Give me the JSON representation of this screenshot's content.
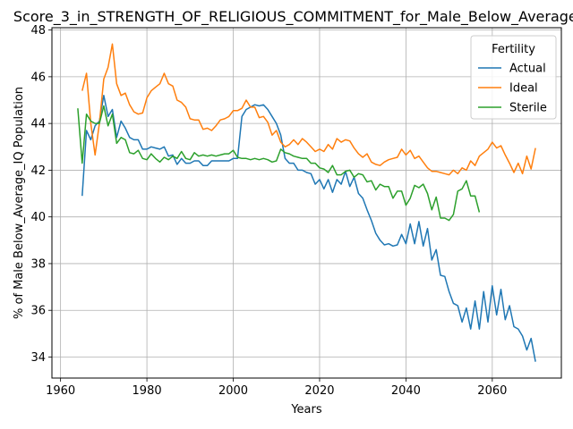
{
  "chart_data": {
    "type": "line",
    "title": "Score_3_in_STRENGTH_OF_RELIGIOUS_COMMITMENT_for_Male_Below_Average_IQ",
    "xlabel": "Years",
    "ylabel": "% of Male Below_Average_IQ Population",
    "xlim": [
      1958,
      2076
    ],
    "ylim": [
      33.1,
      48.1
    ],
    "xticks": [
      1960,
      1980,
      2000,
      2020,
      2040,
      2060
    ],
    "yticks": [
      34,
      36,
      38,
      40,
      42,
      44,
      46,
      48
    ],
    "grid": true,
    "legend": {
      "title": "Fertility",
      "position": "top-right"
    },
    "series": [
      {
        "name": "Actual",
        "color": "#1f77b4",
        "x": [
          1965,
          1966,
          1967,
          1968,
          1969,
          1970,
          1971,
          1972,
          1973,
          1974,
          1975,
          1976,
          1977,
          1978,
          1979,
          1980,
          1981,
          1982,
          1983,
          1984,
          1985,
          1986,
          1987,
          1988,
          1989,
          1990,
          1991,
          1992,
          1993,
          1994,
          1995,
          1996,
          1997,
          1998,
          1999,
          2000,
          2001,
          2002,
          2003,
          2004,
          2005,
          2006,
          2007,
          2008,
          2009,
          2010,
          2011,
          2012,
          2013,
          2014,
          2015,
          2016,
          2017,
          2018,
          2019,
          2020,
          2021,
          2022,
          2023,
          2024,
          2025,
          2026,
          2027,
          2028,
          2029,
          2030,
          2031,
          2032,
          2033,
          2034,
          2035,
          2036,
          2037,
          2038,
          2039,
          2040,
          2041,
          2042,
          2043,
          2044,
          2045,
          2046,
          2047,
          2048,
          2049,
          2050,
          2051,
          2052,
          2053,
          2054,
          2055,
          2056,
          2057,
          2058,
          2059,
          2060,
          2061,
          2062,
          2063,
          2064,
          2065,
          2066,
          2067,
          2068,
          2069,
          2070
        ],
        "y": [
          40.9,
          43.7,
          43.3,
          43.9,
          44.1,
          45.2,
          44.3,
          44.6,
          43.4,
          44.1,
          43.8,
          43.4,
          43.3,
          43.3,
          42.9,
          42.9,
          43.0,
          42.95,
          42.9,
          43.0,
          42.6,
          42.65,
          42.25,
          42.5,
          42.3,
          42.3,
          42.4,
          42.4,
          42.2,
          42.2,
          42.4,
          42.4,
          42.4,
          42.4,
          42.4,
          42.5,
          42.5,
          44.3,
          44.6,
          44.7,
          44.8,
          44.75,
          44.8,
          44.6,
          44.3,
          44.0,
          43.5,
          42.5,
          42.3,
          42.3,
          42.0,
          42.0,
          41.9,
          41.85,
          41.4,
          41.6,
          41.2,
          41.6,
          41.05,
          41.6,
          41.4,
          41.95,
          41.3,
          41.7,
          41.0,
          40.8,
          40.3,
          39.85,
          39.3,
          39.0,
          38.8,
          38.85,
          38.75,
          38.8,
          39.25,
          38.85,
          39.7,
          38.85,
          39.8,
          38.75,
          39.5,
          38.15,
          38.6,
          37.5,
          37.45,
          36.8,
          36.3,
          36.2,
          35.5,
          36.1,
          35.2,
          36.4,
          35.2,
          36.8,
          35.5,
          37.05,
          35.8,
          36.9,
          35.6,
          36.2,
          35.3,
          35.2,
          34.9,
          34.3,
          34.8,
          33.8
        ]
      },
      {
        "name": "Ideal",
        "color": "#ff7f0e",
        "x": [
          1965,
          1966,
          1967,
          1968,
          1969,
          1970,
          1971,
          1972,
          1973,
          1974,
          1975,
          1976,
          1977,
          1978,
          1979,
          1980,
          1981,
          1982,
          1983,
          1984,
          1985,
          1986,
          1987,
          1988,
          1989,
          1990,
          1991,
          1992,
          1993,
          1994,
          1995,
          1996,
          1997,
          1998,
          1999,
          2000,
          2001,
          2002,
          2003,
          2004,
          2005,
          2006,
          2007,
          2008,
          2009,
          2010,
          2011,
          2012,
          2013,
          2014,
          2015,
          2016,
          2017,
          2018,
          2019,
          2020,
          2021,
          2022,
          2023,
          2024,
          2025,
          2026,
          2027,
          2028,
          2029,
          2030,
          2031,
          2032,
          2033,
          2034,
          2035,
          2036,
          2037,
          2038,
          2039,
          2040,
          2041,
          2042,
          2043,
          2044,
          2045,
          2046,
          2047,
          2048,
          2049,
          2050,
          2051,
          2052,
          2053,
          2054,
          2055,
          2056,
          2057,
          2058,
          2059,
          2060,
          2061,
          2062,
          2063,
          2064,
          2065,
          2066,
          2067,
          2068,
          2069,
          2070
        ],
        "y": [
          45.4,
          46.15,
          44.0,
          42.65,
          44.0,
          45.9,
          46.4,
          47.4,
          45.7,
          45.2,
          45.3,
          44.8,
          44.5,
          44.4,
          44.45,
          45.1,
          45.4,
          45.55,
          45.7,
          46.15,
          45.7,
          45.6,
          45.0,
          44.9,
          44.7,
          44.2,
          44.15,
          44.15,
          43.75,
          43.8,
          43.7,
          43.9,
          44.15,
          44.2,
          44.3,
          44.55,
          44.55,
          44.65,
          45.0,
          44.7,
          44.7,
          44.25,
          44.3,
          44.05,
          43.5,
          43.7,
          43.2,
          43.0,
          43.1,
          43.3,
          43.1,
          43.35,
          43.2,
          43.0,
          42.8,
          42.9,
          42.8,
          43.1,
          42.9,
          43.35,
          43.2,
          43.3,
          43.25,
          42.95,
          42.7,
          42.55,
          42.7,
          42.35,
          42.25,
          42.2,
          42.35,
          42.45,
          42.5,
          42.55,
          42.9,
          42.65,
          42.85,
          42.5,
          42.6,
          42.35,
          42.1,
          41.95,
          41.95,
          41.9,
          41.85,
          41.8,
          42.0,
          41.85,
          42.1,
          42.0,
          42.4,
          42.2,
          42.6,
          42.75,
          42.9,
          43.2,
          42.95,
          43.05,
          42.65,
          42.3,
          41.9,
          42.3,
          41.85,
          42.6,
          42.05,
          42.95
        ]
      },
      {
        "name": "Sterile",
        "color": "#2ca02c",
        "x": [
          1964,
          1965,
          1966,
          1967,
          1968,
          1969,
          1970,
          1971,
          1972,
          1973,
          1974,
          1975,
          1976,
          1977,
          1978,
          1979,
          1980,
          1981,
          1982,
          1983,
          1984,
          1985,
          1986,
          1987,
          1988,
          1989,
          1990,
          1991,
          1992,
          1993,
          1994,
          1995,
          1996,
          1997,
          1998,
          1999,
          2000,
          2001,
          2002,
          2003,
          2004,
          2005,
          2006,
          2007,
          2008,
          2009,
          2010,
          2011,
          2012,
          2013,
          2014,
          2015,
          2016,
          2017,
          2018,
          2019,
          2020,
          2021,
          2022,
          2023,
          2024,
          2025,
          2026,
          2027,
          2028,
          2029,
          2030,
          2031,
          2032,
          2033,
          2034,
          2035,
          2036,
          2037,
          2038,
          2039,
          2040,
          2041,
          2042,
          2043,
          2044,
          2045,
          2046,
          2047,
          2048,
          2049,
          2050,
          2051,
          2052,
          2053,
          2054,
          2055,
          2056,
          2057
        ],
        "y": [
          44.65,
          42.3,
          44.4,
          44.1,
          44.0,
          44.0,
          44.75,
          43.9,
          44.4,
          43.15,
          43.4,
          43.3,
          42.75,
          42.7,
          42.85,
          42.5,
          42.45,
          42.7,
          42.5,
          42.35,
          42.55,
          42.45,
          42.6,
          42.5,
          42.8,
          42.5,
          42.45,
          42.75,
          42.6,
          42.65,
          42.6,
          42.65,
          42.6,
          42.65,
          42.7,
          42.7,
          42.85,
          42.55,
          42.5,
          42.5,
          42.45,
          42.5,
          42.45,
          42.5,
          42.45,
          42.35,
          42.4,
          42.9,
          42.75,
          42.7,
          42.6,
          42.55,
          42.5,
          42.5,
          42.3,
          42.3,
          42.1,
          42.05,
          41.9,
          42.2,
          41.8,
          41.8,
          41.95,
          42.0,
          41.7,
          41.85,
          41.8,
          41.5,
          41.55,
          41.15,
          41.4,
          41.3,
          41.3,
          40.8,
          41.1,
          41.1,
          40.5,
          40.8,
          41.35,
          41.25,
          41.4,
          41.0,
          40.3,
          40.85,
          39.95,
          39.95,
          39.85,
          40.1,
          41.1,
          41.2,
          41.55,
          40.9,
          40.9,
          40.2
        ]
      }
    ]
  }
}
